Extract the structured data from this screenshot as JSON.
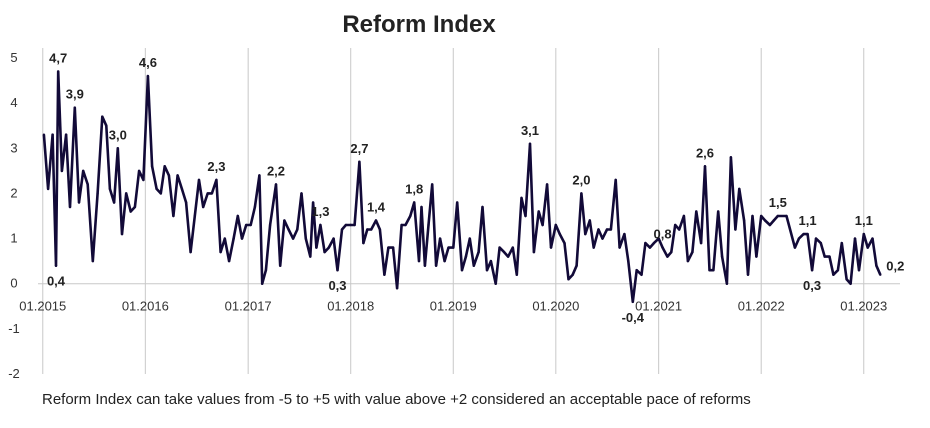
{
  "chart_data": {
    "type": "line",
    "title": "Reform Index",
    "xlabel": "",
    "ylabel": "",
    "ylim": [
      -2,
      5
    ],
    "y_ticks": [
      "5",
      "4",
      "3",
      "2",
      "1",
      "0",
      "-1",
      "-2"
    ],
    "x_tick_labels": [
      "01.2015",
      "01.2016",
      "01.2017",
      "01.2018",
      "01.2019",
      "01.2020",
      "01.2021",
      "01.2022",
      "01.2023"
    ],
    "xlim": [
      "2014-12-15",
      "2023-05-10"
    ],
    "grid": "vertical lines at each year",
    "colors": {
      "line": "#120a38",
      "grid": "#c8c8c8"
    },
    "series": [
      {
        "name": "",
        "points": [
          [
            "2015-01-05",
            3.3
          ],
          [
            "2015-01-20",
            2.1
          ],
          [
            "2015-02-05",
            3.3
          ],
          [
            "2015-02-17",
            0.4
          ],
          [
            "2015-02-25",
            4.7
          ],
          [
            "2015-03-10",
            2.5
          ],
          [
            "2015-03-25",
            3.3
          ],
          [
            "2015-04-08",
            1.7
          ],
          [
            "2015-04-25",
            3.9
          ],
          [
            "2015-05-10",
            1.8
          ],
          [
            "2015-05-25",
            2.5
          ],
          [
            "2015-06-10",
            2.2
          ],
          [
            "2015-06-28",
            0.5
          ],
          [
            "2015-07-15",
            2.0
          ],
          [
            "2015-08-01",
            3.7
          ],
          [
            "2015-08-15",
            3.5
          ],
          [
            "2015-08-28",
            2.1
          ],
          [
            "2015-09-12",
            1.8
          ],
          [
            "2015-09-25",
            3.0
          ],
          [
            "2015-10-10",
            1.1
          ],
          [
            "2015-10-25",
            2.0
          ],
          [
            "2015-11-10",
            1.6
          ],
          [
            "2015-11-25",
            1.7
          ],
          [
            "2015-12-10",
            2.5
          ],
          [
            "2015-12-25",
            2.3
          ],
          [
            "2016-01-10",
            4.6
          ],
          [
            "2016-01-25",
            2.6
          ],
          [
            "2016-02-10",
            2.1
          ],
          [
            "2016-02-25",
            2.0
          ],
          [
            "2016-03-10",
            2.6
          ],
          [
            "2016-03-25",
            2.4
          ],
          [
            "2016-04-10",
            1.5
          ],
          [
            "2016-04-25",
            2.4
          ],
          [
            "2016-05-10",
            2.1
          ],
          [
            "2016-05-25",
            1.8
          ],
          [
            "2016-06-10",
            0.7
          ],
          [
            "2016-06-25",
            1.5
          ],
          [
            "2016-07-10",
            2.3
          ],
          [
            "2016-07-25",
            1.7
          ],
          [
            "2016-08-10",
            2.0
          ],
          [
            "2016-08-25",
            2.0
          ],
          [
            "2016-09-10",
            2.3
          ],
          [
            "2016-09-25",
            0.7
          ],
          [
            "2016-10-10",
            1.0
          ],
          [
            "2016-10-25",
            0.5
          ],
          [
            "2016-11-10",
            1.0
          ],
          [
            "2016-11-25",
            1.5
          ],
          [
            "2016-12-10",
            1.0
          ],
          [
            "2016-12-25",
            1.3
          ],
          [
            "2017-01-10",
            1.3
          ],
          [
            "2017-01-25",
            1.7
          ],
          [
            "2017-02-10",
            2.4
          ],
          [
            "2017-02-20",
            0.0
          ],
          [
            "2017-03-05",
            0.3
          ],
          [
            "2017-03-20",
            1.3
          ],
          [
            "2017-04-10",
            2.2
          ],
          [
            "2017-04-25",
            0.4
          ],
          [
            "2017-05-10",
            1.4
          ],
          [
            "2017-05-25",
            1.2
          ],
          [
            "2017-06-10",
            1.0
          ],
          [
            "2017-06-25",
            1.2
          ],
          [
            "2017-07-10",
            2.0
          ],
          [
            "2017-07-25",
            1.0
          ],
          [
            "2017-08-10",
            0.6
          ],
          [
            "2017-08-20",
            1.8
          ],
          [
            "2017-09-01",
            0.8
          ],
          [
            "2017-09-15",
            1.3
          ],
          [
            "2017-09-30",
            0.7
          ],
          [
            "2017-10-15",
            0.8
          ],
          [
            "2017-11-01",
            1.0
          ],
          [
            "2017-11-15",
            0.3
          ],
          [
            "2017-12-01",
            1.2
          ],
          [
            "2017-12-15",
            1.3
          ],
          [
            "2018-01-01",
            1.3
          ],
          [
            "2018-01-15",
            1.3
          ],
          [
            "2018-02-01",
            2.7
          ],
          [
            "2018-02-15",
            0.9
          ],
          [
            "2018-03-01",
            1.2
          ],
          [
            "2018-03-15",
            1.2
          ],
          [
            "2018-04-01",
            1.4
          ],
          [
            "2018-04-15",
            1.2
          ],
          [
            "2018-05-01",
            0.2
          ],
          [
            "2018-05-15",
            0.8
          ],
          [
            "2018-06-01",
            0.8
          ],
          [
            "2018-06-15",
            -0.1
          ],
          [
            "2018-07-01",
            1.3
          ],
          [
            "2018-07-15",
            1.3
          ],
          [
            "2018-08-01",
            1.5
          ],
          [
            "2018-08-15",
            1.8
          ],
          [
            "2018-09-01",
            0.5
          ],
          [
            "2018-09-10",
            1.7
          ],
          [
            "2018-09-22",
            0.4
          ],
          [
            "2018-10-05",
            1.3
          ],
          [
            "2018-10-18",
            2.2
          ],
          [
            "2018-11-01",
            0.4
          ],
          [
            "2018-11-15",
            1.0
          ],
          [
            "2018-12-01",
            0.5
          ],
          [
            "2018-12-15",
            0.8
          ],
          [
            "2019-01-01",
            0.8
          ],
          [
            "2019-01-15",
            1.8
          ],
          [
            "2019-02-01",
            0.3
          ],
          [
            "2019-02-15",
            0.6
          ],
          [
            "2019-03-01",
            1.0
          ],
          [
            "2019-03-15",
            0.4
          ],
          [
            "2019-04-01",
            0.7
          ],
          [
            "2019-04-15",
            1.7
          ],
          [
            "2019-05-01",
            0.3
          ],
          [
            "2019-05-15",
            0.5
          ],
          [
            "2019-06-01",
            0.0
          ],
          [
            "2019-06-15",
            0.8
          ],
          [
            "2019-07-01",
            0.7
          ],
          [
            "2019-07-15",
            0.6
          ],
          [
            "2019-08-01",
            0.8
          ],
          [
            "2019-08-15",
            0.2
          ],
          [
            "2019-09-01",
            1.9
          ],
          [
            "2019-09-15",
            1.5
          ],
          [
            "2019-10-01",
            3.1
          ],
          [
            "2019-10-15",
            0.7
          ],
          [
            "2019-11-01",
            1.6
          ],
          [
            "2019-11-15",
            1.3
          ],
          [
            "2019-12-01",
            2.2
          ],
          [
            "2019-12-15",
            0.8
          ],
          [
            "2020-01-01",
            1.3
          ],
          [
            "2020-01-15",
            1.1
          ],
          [
            "2020-02-01",
            0.9
          ],
          [
            "2020-02-15",
            0.1
          ],
          [
            "2020-03-01",
            0.2
          ],
          [
            "2020-03-15",
            0.4
          ],
          [
            "2020-04-01",
            2.0
          ],
          [
            "2020-04-15",
            1.1
          ],
          [
            "2020-05-01",
            1.4
          ],
          [
            "2020-05-15",
            0.8
          ],
          [
            "2020-06-01",
            1.2
          ],
          [
            "2020-06-15",
            1.0
          ],
          [
            "2020-07-01",
            1.2
          ],
          [
            "2020-07-15",
            1.2
          ],
          [
            "2020-08-01",
            2.3
          ],
          [
            "2020-08-15",
            0.8
          ],
          [
            "2020-09-01",
            1.1
          ],
          [
            "2020-09-15",
            0.5
          ],
          [
            "2020-10-01",
            -0.4
          ],
          [
            "2020-10-15",
            0.3
          ],
          [
            "2020-11-01",
            0.2
          ],
          [
            "2020-11-15",
            0.9
          ],
          [
            "2020-12-01",
            0.8
          ],
          [
            "2020-12-15",
            0.9
          ],
          [
            "2021-01-01",
            1.0
          ],
          [
            "2021-01-15",
            0.8
          ],
          [
            "2021-02-01",
            0.6
          ],
          [
            "2021-02-15",
            0.7
          ],
          [
            "2021-03-01",
            1.3
          ],
          [
            "2021-03-15",
            1.2
          ],
          [
            "2021-04-01",
            1.5
          ],
          [
            "2021-04-15",
            0.5
          ],
          [
            "2021-05-01",
            0.7
          ],
          [
            "2021-05-15",
            1.6
          ],
          [
            "2021-06-01",
            0.9
          ],
          [
            "2021-06-15",
            2.6
          ],
          [
            "2021-07-01",
            0.3
          ],
          [
            "2021-07-15",
            0.3
          ],
          [
            "2021-08-01",
            1.6
          ],
          [
            "2021-08-15",
            0.6
          ],
          [
            "2021-09-01",
            0.0
          ],
          [
            "2021-09-15",
            2.8
          ],
          [
            "2021-10-01",
            1.2
          ],
          [
            "2021-10-15",
            2.1
          ],
          [
            "2021-11-01",
            1.4
          ],
          [
            "2021-11-15",
            0.2
          ],
          [
            "2021-12-01",
            1.5
          ],
          [
            "2021-12-15",
            0.6
          ],
          [
            "2022-01-01",
            1.5
          ],
          [
            "2022-01-15",
            1.4
          ],
          [
            "2022-02-01",
            1.3
          ],
          [
            "2022-02-15",
            1.4
          ],
          [
            "2022-03-01",
            1.5
          ],
          [
            "2022-04-01",
            1.5
          ],
          [
            "2022-05-01",
            0.8
          ],
          [
            "2022-05-15",
            1.0
          ],
          [
            "2022-06-01",
            1.1
          ],
          [
            "2022-06-15",
            1.1
          ],
          [
            "2022-07-01",
            0.3
          ],
          [
            "2022-07-15",
            1.0
          ],
          [
            "2022-08-01",
            0.9
          ],
          [
            "2022-08-15",
            0.6
          ],
          [
            "2022-09-01",
            0.6
          ],
          [
            "2022-09-15",
            0.2
          ],
          [
            "2022-10-01",
            0.3
          ],
          [
            "2022-10-15",
            0.9
          ],
          [
            "2022-11-01",
            0.1
          ],
          [
            "2022-11-15",
            0.0
          ],
          [
            "2022-12-01",
            1.0
          ],
          [
            "2022-12-15",
            0.3
          ],
          [
            "2023-01-01",
            1.1
          ],
          [
            "2023-01-15",
            0.8
          ],
          [
            "2023-02-01",
            1.0
          ],
          [
            "2023-02-15",
            0.4
          ],
          [
            "2023-03-01",
            0.2
          ]
        ]
      }
    ],
    "annotations": [
      {
        "text": "4,7",
        "date": "2015-02-25",
        "value": 4.7,
        "position": "above"
      },
      {
        "text": "3,9",
        "date": "2015-04-25",
        "value": 3.9,
        "position": "above"
      },
      {
        "text": "0,4",
        "date": "2015-02-17",
        "value": 0.4,
        "position": "below"
      },
      {
        "text": "3,0",
        "date": "2015-09-25",
        "value": 3.0,
        "position": "above"
      },
      {
        "text": "4,6",
        "date": "2016-01-10",
        "value": 4.6,
        "position": "above"
      },
      {
        "text": "2,3",
        "date": "2016-09-10",
        "value": 2.3,
        "position": "above"
      },
      {
        "text": "2,2",
        "date": "2017-04-10",
        "value": 2.2,
        "position": "above"
      },
      {
        "text": "1,3",
        "date": "2017-09-15",
        "value": 1.3,
        "position": "above"
      },
      {
        "text": "0,3",
        "date": "2017-11-15",
        "value": 0.3,
        "position": "below"
      },
      {
        "text": "2,7",
        "date": "2018-02-01",
        "value": 2.7,
        "position": "above"
      },
      {
        "text": "1,4",
        "date": "2018-04-01",
        "value": 1.4,
        "position": "above"
      },
      {
        "text": "1,8",
        "date": "2018-08-15",
        "value": 1.8,
        "position": "above"
      },
      {
        "text": "3,1",
        "date": "2019-10-01",
        "value": 3.1,
        "position": "above"
      },
      {
        "text": "2,0",
        "date": "2020-04-01",
        "value": 2.0,
        "position": "above"
      },
      {
        "text": "-0,4",
        "date": "2020-10-01",
        "value": -0.4,
        "position": "below"
      },
      {
        "text": "0,8",
        "date": "2021-01-15",
        "value": 0.8,
        "position": "above"
      },
      {
        "text": "2,6",
        "date": "2021-06-15",
        "value": 2.6,
        "position": "above"
      },
      {
        "text": "1,5",
        "date": "2022-03-01",
        "value": 1.5,
        "position": "above"
      },
      {
        "text": "1,1",
        "date": "2022-06-15",
        "value": 1.1,
        "position": "above"
      },
      {
        "text": "0,3",
        "date": "2022-07-01",
        "value": 0.3,
        "position": "below"
      },
      {
        "text": "1,1",
        "date": "2023-01-01",
        "value": 1.1,
        "position": "above"
      },
      {
        "text": "0,2",
        "date": "2023-03-01",
        "value": 0.2,
        "position": "right"
      }
    ],
    "note": "Reform Index can take values from -5 to +5 with value above +2 considered an acceptable pace of reforms"
  }
}
